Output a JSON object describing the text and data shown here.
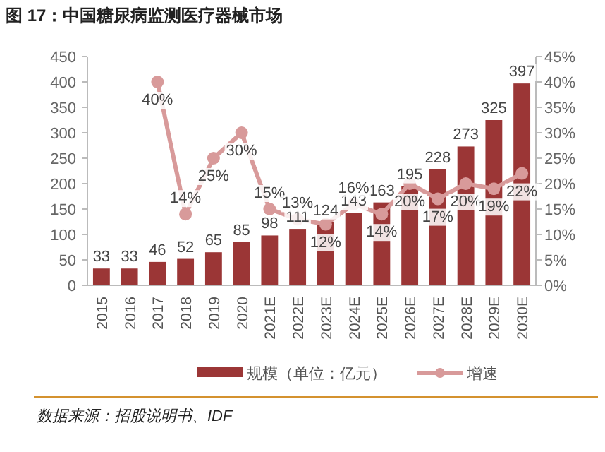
{
  "chart_data": {
    "type": "bar",
    "title": "图 17：中国糖尿病监测医疗器械市场",
    "categories": [
      "2015",
      "2016",
      "2017",
      "2018",
      "2019",
      "2020",
      "2021E",
      "2022E",
      "2023E",
      "2024E",
      "2025E",
      "2026E",
      "2027E",
      "2028E",
      "2029E",
      "2030E"
    ],
    "series": [
      {
        "name": "规模（单位：亿元）",
        "color": "#9b3636",
        "values": [
          33,
          33,
          46,
          52,
          65,
          85,
          98,
          111,
          124,
          143,
          163,
          195,
          228,
          273,
          325,
          397
        ],
        "value_labels": [
          "33",
          "33",
          "46",
          "52",
          "65",
          "85",
          "98",
          "111",
          "124",
          "143",
          "163",
          "195",
          "228",
          "273",
          "325",
          "397"
        ]
      },
      {
        "name": "增速",
        "type": "line",
        "axis": "y2",
        "color": "#d89a9a",
        "marker": "circle",
        "values": [
          null,
          null,
          40,
          14,
          25,
          30,
          15,
          13,
          12,
          16,
          14,
          20,
          17,
          20,
          19,
          22
        ],
        "value_labels": [
          null,
          null,
          "40%",
          "14%",
          "25%",
          "30%",
          "15%",
          "13%",
          "12%",
          "16%",
          "14%",
          "20%",
          "17%",
          "20%",
          "19%",
          "22%"
        ]
      }
    ],
    "ylim": [
      0,
      450
    ],
    "yticks": [
      0,
      50,
      100,
      150,
      200,
      250,
      300,
      350,
      400,
      450
    ],
    "y2lim": [
      0,
      45
    ],
    "y2ticks": [
      {
        "value": 0,
        "label": "0%"
      },
      {
        "value": 5,
        "label": "5%"
      },
      {
        "value": 10,
        "label": "10%"
      },
      {
        "value": 15,
        "label": "15%"
      },
      {
        "value": 20,
        "label": "20%"
      },
      {
        "value": 25,
        "label": "25%"
      },
      {
        "value": 30,
        "label": "30%"
      },
      {
        "value": 35,
        "label": "35%"
      },
      {
        "value": 40,
        "label": "40%"
      },
      {
        "value": 45,
        "label": "45%"
      }
    ],
    "grid": false,
    "legend": "bottom",
    "annotations": [
      "数据来源：招股说明书、IDF"
    ]
  }
}
